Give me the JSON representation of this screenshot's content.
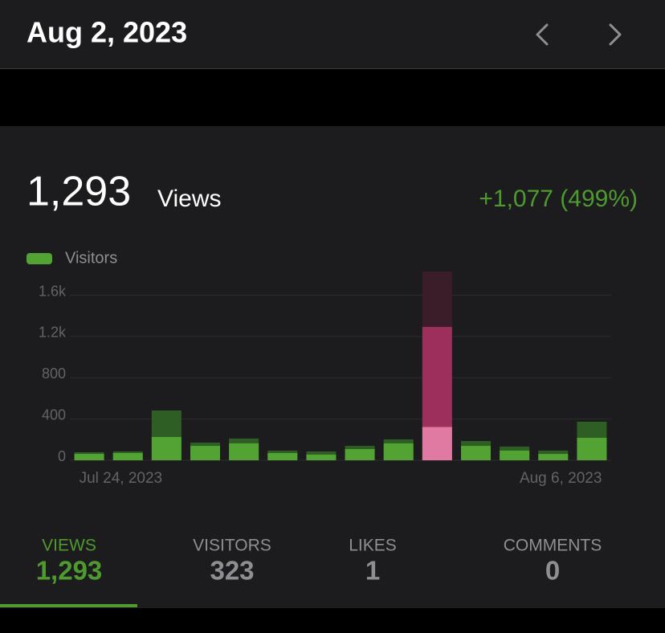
{
  "header": {
    "title": "Aug 2, 2023"
  },
  "summary": {
    "value": "1,293",
    "unit": "Views",
    "change": "+1,077 (499%)"
  },
  "chart_data": {
    "type": "bar",
    "legend": "top-left",
    "grid": true,
    "highlight": 9,
    "categories": [
      "Jul 24, 2023",
      null,
      null,
      null,
      null,
      null,
      null,
      null,
      null,
      null,
      null,
      null,
      null,
      "Aug 6, 2023"
    ],
    "series": [
      {
        "color": "#2f5e25",
        "highlight_color": "#9c2f5c",
        "values": [
          78,
          86,
          483,
          172,
          211,
          94,
          86,
          140,
          203,
          1293,
          187,
          133,
          94,
          374
        ]
      },
      {
        "name": "Visitors",
        "color": "#52a234",
        "highlight_color": "#e07aa3",
        "values": [
          62,
          70,
          226,
          140,
          164,
          70,
          55,
          109,
          164,
          323,
          140,
          94,
          62,
          218
        ]
      }
    ],
    "ylim": [
      0,
      1830
    ],
    "yticks": [
      0,
      400,
      800,
      {
        "value": 1200,
        "label": "1.2k"
      },
      {
        "value": 1600,
        "label": "1.6k"
      }
    ]
  },
  "tabs": [
    {
      "label": "VIEWS",
      "value": "1,293"
    },
    {
      "label": "VISITORS",
      "value": "323"
    },
    {
      "label": "LIKES",
      "value": "1"
    },
    {
      "label": "COMMENTS",
      "value": "0"
    }
  ]
}
